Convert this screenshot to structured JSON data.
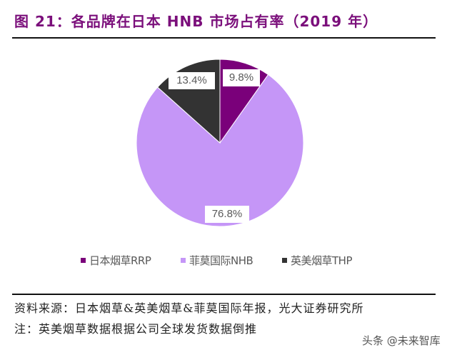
{
  "header": {
    "title": "图 21：各品牌在日本 HNB 市场占有率（2019 年）"
  },
  "chart_data": {
    "type": "pie",
    "title": "图 21：各品牌在日本 HNB 市场占有率（2019 年）",
    "categories": [
      "日本烟草RRP",
      "菲莫国际NHB",
      "英美烟草THP"
    ],
    "values": [
      9.8,
      76.8,
      13.4
    ],
    "value_labels": [
      "9.8%",
      "76.8%",
      "13.4%"
    ],
    "colors": [
      "#7a007a",
      "#c596f7",
      "#333333"
    ],
    "start_angle": "12 o'clock",
    "direction": "clockwise",
    "legend_position": "bottom"
  },
  "legend": {
    "items": [
      {
        "label": "日本烟草RRP",
        "color": "#7a007a"
      },
      {
        "label": "菲莫国际NHB",
        "color": "#c596f7"
      },
      {
        "label": "英美烟草THP",
        "color": "#333333"
      }
    ]
  },
  "footer": {
    "source": "资料来源：日本烟草&英美烟草&菲莫国际年报，光大证券研究所",
    "note": "注：英美烟草数据根据公司全球发货数据倒推",
    "watermark": "头条 @未来智库"
  }
}
